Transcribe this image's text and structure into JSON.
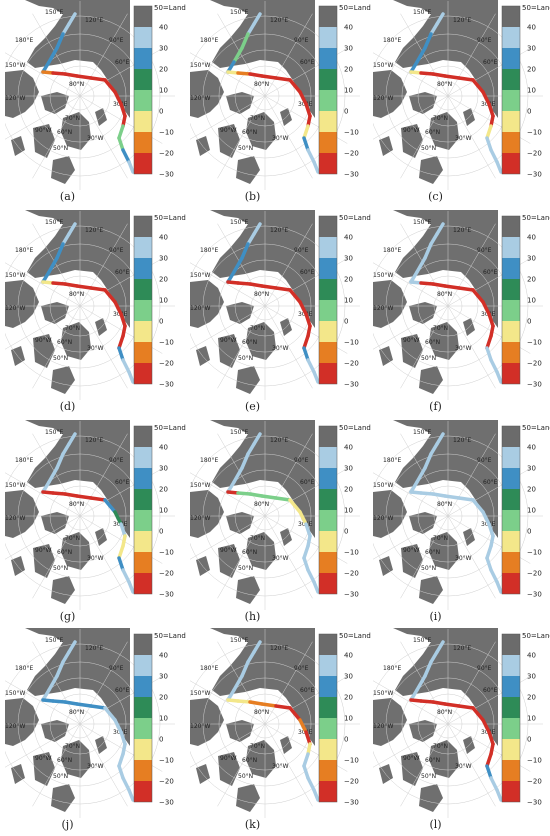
{
  "legend": {
    "top_label": "50=Land",
    "tick_labels": [
      "40",
      "30",
      "20",
      "10",
      "0",
      "−10",
      "−20",
      "−30"
    ],
    "colors": [
      "#6b6b6b",
      "#a9cce3",
      "#3f8fc4",
      "#2e8b57",
      "#7ccf8a",
      "#f3e78a",
      "#e67e22",
      "#d22f27"
    ]
  },
  "map_labels": {
    "lon_150e": "150°E",
    "lon_120e": "120°E",
    "lon_90e": "90°E",
    "lon_60e": "60°E",
    "lon_30e": "30°E",
    "lon_180e": "180°E",
    "lon_150w": "150°W",
    "lon_120w": "120°W",
    "lon_30w": "30°W",
    "lon_90w": "90°W",
    "lat_80n": "80°N",
    "lat_70n": "70°N",
    "lat_60n": "60°N",
    "lat_50n": "50°N"
  },
  "panels": [
    {
      "label": "(a)",
      "route_values": [
        40,
        40,
        30,
        30,
        30,
        -10,
        -20,
        -20,
        -30,
        -30,
        -30,
        -30,
        -30,
        -30,
        10,
        10,
        30,
        40,
        40
      ]
    },
    {
      "label": "(b)",
      "route_values": [
        40,
        40,
        10,
        10,
        30,
        0,
        -10,
        -20,
        -30,
        -30,
        -30,
        -30,
        -30,
        -30,
        0,
        30,
        40,
        40,
        40
      ]
    },
    {
      "label": "(c)",
      "route_values": [
        40,
        40,
        30,
        30,
        30,
        0,
        -20,
        -30,
        -30,
        -30,
        -30,
        -30,
        -30,
        -20,
        0,
        40,
        40,
        40,
        40
      ]
    },
    {
      "label": "(d)",
      "route_values": [
        40,
        40,
        30,
        30,
        30,
        0,
        -20,
        -30,
        -30,
        -30,
        -30,
        -30,
        -30,
        -30,
        -30,
        30,
        40,
        40,
        40
      ]
    },
    {
      "label": "(e)",
      "route_values": [
        40,
        40,
        30,
        30,
        30,
        -30,
        -30,
        -30,
        -30,
        -30,
        -30,
        -30,
        -30,
        -30,
        -30,
        30,
        40,
        40,
        40
      ]
    },
    {
      "label": "(f)",
      "route_values": [
        40,
        40,
        40,
        40,
        40,
        40,
        -20,
        -20,
        -30,
        -30,
        -30,
        -30,
        -30,
        -20,
        -20,
        40,
        40,
        40,
        40
      ]
    },
    {
      "label": "(g)",
      "route_values": [
        40,
        40,
        40,
        40,
        40,
        -20,
        -20,
        -30,
        -20,
        -30,
        30,
        20,
        40,
        0,
        0,
        30,
        40,
        40,
        40
      ]
    },
    {
      "label": "(h)",
      "route_values": [
        40,
        40,
        40,
        40,
        40,
        -30,
        10,
        10,
        10,
        10,
        0,
        0,
        40,
        40,
        40,
        40,
        40,
        40,
        40
      ]
    },
    {
      "label": "(i)",
      "route_values": [
        40,
        40,
        40,
        40,
        40,
        40,
        40,
        40,
        40,
        40,
        40,
        40,
        40,
        40,
        40,
        40,
        40,
        40,
        40
      ]
    },
    {
      "label": "(j)",
      "route_values": [
        40,
        40,
        40,
        40,
        40,
        30,
        30,
        30,
        30,
        30,
        40,
        40,
        40,
        40,
        40,
        40,
        40,
        40,
        40
      ]
    },
    {
      "label": "(k)",
      "route_values": [
        40,
        40,
        40,
        40,
        40,
        0,
        0,
        -10,
        -10,
        -20,
        -30,
        -10,
        -30,
        0,
        40,
        40,
        40,
        40,
        40
      ]
    },
    {
      "label": "(l)",
      "route_values": [
        40,
        40,
        40,
        40,
        40,
        -30,
        -30,
        -20,
        -20,
        -30,
        -20,
        -30,
        -30,
        -30,
        -30,
        30,
        40,
        40,
        40
      ]
    }
  ]
}
